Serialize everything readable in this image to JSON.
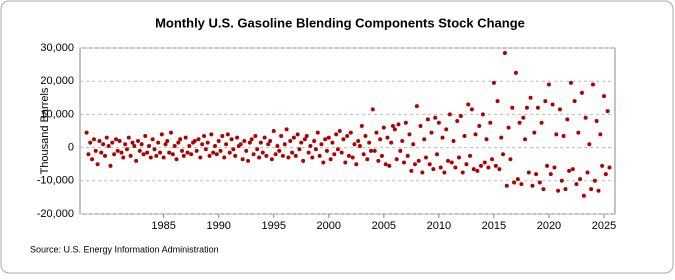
{
  "chart_data": {
    "type": "scatter",
    "title": "Monthly U.S. Gasoline Blending Components Stock Change",
    "y_label": "Thousand Barrels",
    "source": "Source: U.S. Energy Information Administration",
    "color": "#b00000",
    "grid": true,
    "xlim": [
      1977.4,
      2026.0
    ],
    "ylim": [
      -20000,
      30000
    ],
    "xticks": [
      1985,
      1990,
      1995,
      2000,
      2005,
      2010,
      2015,
      2020,
      2025
    ],
    "yticks": [
      {
        "value": -20000,
        "label": "-20,000"
      },
      {
        "value": -10000,
        "label": "-10,000"
      },
      0,
      {
        "value": 10000,
        "label": "10,000"
      },
      {
        "value": 20000,
        "label": "20,000"
      },
      {
        "value": 30000,
        "label": "30,000"
      }
    ],
    "x": [
      1978,
      1978.17,
      1978.33,
      1978.5,
      1978.67,
      1978.83,
      1979,
      1979.17,
      1979.33,
      1979.5,
      1979.67,
      1979.83,
      1980,
      1980.17,
      1980.33,
      1980.5,
      1980.67,
      1980.83,
      1981,
      1981.17,
      1981.33,
      1981.5,
      1981.67,
      1981.83,
      1982,
      1982.17,
      1982.33,
      1982.5,
      1982.67,
      1982.83,
      1983,
      1983.17,
      1983.33,
      1983.5,
      1983.67,
      1983.83,
      1984,
      1984.17,
      1984.33,
      1984.5,
      1984.67,
      1984.83,
      1985,
      1985.17,
      1985.33,
      1985.5,
      1985.67,
      1985.83,
      1986,
      1986.17,
      1986.33,
      1986.5,
      1986.67,
      1986.83,
      1987,
      1987.17,
      1987.33,
      1987.5,
      1987.67,
      1987.83,
      1988,
      1988.17,
      1988.33,
      1988.5,
      1988.67,
      1988.83,
      1989,
      1989.17,
      1989.33,
      1989.5,
      1989.67,
      1989.83,
      1990,
      1990.17,
      1990.33,
      1990.5,
      1990.67,
      1990.83,
      1991,
      1991.17,
      1991.33,
      1991.5,
      1991.67,
      1991.83,
      1992,
      1992.17,
      1992.33,
      1992.5,
      1992.67,
      1992.83,
      1993,
      1993.17,
      1993.33,
      1993.5,
      1993.67,
      1993.83,
      1994,
      1994.17,
      1994.33,
      1994.5,
      1994.67,
      1994.83,
      1995,
      1995.17,
      1995.33,
      1995.5,
      1995.67,
      1995.83,
      1996,
      1996.17,
      1996.33,
      1996.5,
      1996.67,
      1996.83,
      1997,
      1997.17,
      1997.33,
      1997.5,
      1997.67,
      1997.83,
      1998,
      1998.17,
      1998.33,
      1998.5,
      1998.67,
      1998.83,
      1999,
      1999.17,
      1999.33,
      1999.5,
      1999.67,
      1999.83,
      2000,
      2000.17,
      2000.33,
      2000.5,
      2000.67,
      2000.83,
      2001,
      2001.17,
      2001.33,
      2001.5,
      2001.67,
      2001.83,
      2002,
      2002.17,
      2002.33,
      2002.5,
      2002.67,
      2002.83,
      2003,
      2003.17,
      2003.33,
      2003.5,
      2003.67,
      2003.83,
      2004,
      2004.17,
      2004.33,
      2004.5,
      2004.67,
      2004.83,
      2005,
      2005.17,
      2005.33,
      2005.5,
      2005.67,
      2005.83,
      2006,
      2006.17,
      2006.33,
      2006.5,
      2006.67,
      2006.83,
      2007,
      2007.17,
      2007.33,
      2007.5,
      2007.67,
      2007.83,
      2008,
      2008.17,
      2008.33,
      2008.5,
      2008.67,
      2008.83,
      2009,
      2009.17,
      2009.33,
      2009.5,
      2009.67,
      2009.83,
      2010,
      2010.17,
      2010.33,
      2010.5,
      2010.67,
      2010.83,
      2011,
      2011.17,
      2011.33,
      2011.5,
      2011.67,
      2011.83,
      2012,
      2012.17,
      2012.33,
      2012.5,
      2012.67,
      2012.83,
      2013,
      2013.17,
      2013.33,
      2013.5,
      2013.67,
      2013.83,
      2014,
      2014.17,
      2014.33,
      2014.5,
      2014.67,
      2014.83,
      2015,
      2015.17,
      2015.33,
      2015.5,
      2015.67,
      2015.83,
      2016,
      2016.17,
      2016.33,
      2016.5,
      2016.67,
      2016.83,
      2017,
      2017.17,
      2017.33,
      2017.5,
      2017.67,
      2017.83,
      2018,
      2018.17,
      2018.33,
      2018.5,
      2018.67,
      2018.83,
      2019,
      2019.17,
      2019.33,
      2019.5,
      2019.67,
      2019.83,
      2020,
      2020.17,
      2020.33,
      2020.5,
      2020.67,
      2020.83,
      2021,
      2021.17,
      2021.33,
      2021.5,
      2021.67,
      2021.83,
      2022,
      2022.17,
      2022.33,
      2022.5,
      2022.67,
      2022.83,
      2023,
      2023.17,
      2023.33,
      2023.5,
      2023.67,
      2023.83,
      2024,
      2024.17,
      2024.33,
      2024.5,
      2024.67,
      2024.83,
      2025,
      2025.17,
      2025.33,
      2025.5
    ],
    "values": [
      4500,
      -2000,
      1500,
      -3500,
      2500,
      -1000,
      -5000,
      2000,
      -1500,
      1000,
      -2500,
      3000,
      500,
      -5500,
      1500,
      -2000,
      2500,
      -1000,
      2000,
      -1500,
      -3000,
      1000,
      -500,
      3000,
      -2500,
      1500,
      500,
      -4000,
      2000,
      -1000,
      1000,
      -2000,
      3500,
      -1500,
      500,
      -3000,
      2500,
      -500,
      -2500,
      1500,
      -1500,
      4000,
      -3000,
      1000,
      2000,
      -1500,
      4500,
      -2000,
      500,
      -3500,
      1500,
      2500,
      -1000,
      -2500,
      3000,
      -1500,
      500,
      -2000,
      1500,
      2000,
      -1000,
      2500,
      -3000,
      1000,
      3500,
      -500,
      1500,
      -2500,
      4000,
      -1500,
      500,
      -2000,
      2000,
      -1000,
      3500,
      -3000,
      1000,
      4000,
      -1500,
      2500,
      -500,
      -2500,
      3000,
      500,
      1000,
      -3500,
      2000,
      -1000,
      -4000,
      1500,
      2500,
      -2000,
      3500,
      -500,
      -3000,
      1500,
      -1500,
      3000,
      -2500,
      1000,
      2000,
      -3500,
      5000,
      -2000,
      500,
      -1000,
      3500,
      -2500,
      1000,
      5500,
      -3000,
      2000,
      -1500,
      3000,
      -2500,
      4000,
      -500,
      1500,
      -4000,
      2500,
      3500,
      -1500,
      500,
      -3000,
      2000,
      -500,
      4500,
      -2500,
      1000,
      -4500,
      2500,
      -1000,
      3000,
      -3500,
      1500,
      -2000,
      4000,
      -500,
      5000,
      -1500,
      2500,
      -4500,
      3500,
      -2500,
      4500,
      -3000,
      1000,
      -5000,
      2000,
      500,
      6500,
      -2000,
      3500,
      -3500,
      1500,
      -1000,
      11500,
      -1000,
      4500,
      -4000,
      2500,
      -2500,
      6000,
      -5000,
      3000,
      -5500,
      1500,
      6500,
      5500,
      -3500,
      7000,
      -1000,
      2000,
      -4500,
      7500,
      -2500,
      4000,
      -7000,
      1000,
      -5000,
      12500,
      -4000,
      6500,
      -7500,
      2500,
      -3000,
      8500,
      -5000,
      4500,
      -6500,
      9000,
      -2000,
      7500,
      -6000,
      3000,
      -7500,
      5500,
      -4000,
      10000,
      -4500,
      2000,
      -6000,
      8000,
      -3000,
      9500,
      -7500,
      3500,
      -5000,
      13000,
      -2500,
      11500,
      -6500,
      4000,
      -7000,
      6500,
      -5500,
      10000,
      -4500,
      2500,
      -6000,
      7500,
      -3500,
      19500,
      -5500,
      14000,
      -6500,
      3000,
      -2000,
      28500,
      -11500,
      6000,
      -3500,
      12000,
      -10500,
      22500,
      -9500,
      7500,
      -11000,
      9000,
      2500,
      12000,
      -7500,
      15000,
      -11500,
      4500,
      -8000,
      12000,
      -10500,
      7500,
      -12500,
      14000,
      -5500,
      19000,
      -8000,
      13000,
      -6000,
      4000,
      -13000,
      11500,
      -10000,
      3500,
      -12500,
      8500,
      -7000,
      19500,
      -6500,
      14000,
      -11000,
      4500,
      -9500,
      16500,
      -14500,
      9000,
      -7500,
      1000,
      -12500,
      19000,
      -10000,
      8000,
      -13000,
      4000,
      -5500,
      15500,
      -8000,
      11000,
      -6000
    ]
  }
}
